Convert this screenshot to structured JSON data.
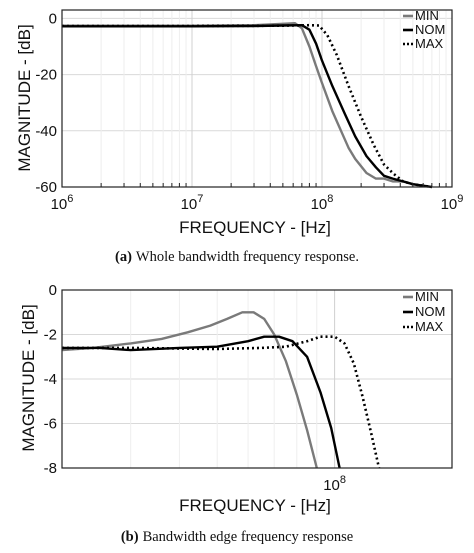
{
  "chart_data": [
    {
      "type": "line",
      "panel": "a",
      "xscale": "log",
      "xlabel": "FREQUENCY - [Hz]",
      "ylabel": "MAGNITUDE - [dB]",
      "xlim": [
        1000000,
        1000000000
      ],
      "ylim": [
        -60,
        3
      ],
      "x_tick_labels": [
        {
          "base": "10",
          "exp": "6",
          "value": 1000000
        },
        {
          "base": "10",
          "exp": "7",
          "value": 10000000
        },
        {
          "base": "10",
          "exp": "8",
          "value": 100000000
        },
        {
          "base": "10",
          "exp": "9",
          "value": 1000000000
        }
      ],
      "y_ticks": [
        0,
        -20,
        -40,
        -60
      ],
      "y_tick_labels": [
        "0",
        "-20",
        "-40",
        "-60"
      ],
      "grid": true,
      "legend": "top-right",
      "series": [
        {
          "name": "MIN",
          "color": "#7a7a7a",
          "dash": "solid",
          "points": [
            [
              1000000,
              -2.6
            ],
            [
              10000000,
              -2.6
            ],
            [
              30000000,
              -2.4
            ],
            [
              50000000,
              -1.9
            ],
            [
              62000000,
              -1.7
            ],
            [
              70000000,
              -3.5
            ],
            [
              80000000,
              -10
            ],
            [
              90000000,
              -17
            ],
            [
              100000000,
              -23
            ],
            [
              120000000,
              -33
            ],
            [
              140000000,
              -40
            ],
            [
              160000000,
              -46
            ],
            [
              180000000,
              -50
            ],
            [
              220000000,
              -55
            ],
            [
              260000000,
              -57
            ],
            [
              300000000,
              -57
            ],
            [
              350000000,
              -58
            ],
            [
              420000000,
              -58
            ],
            [
              500000000,
              -59
            ],
            [
              700000000,
              -60
            ]
          ]
        },
        {
          "name": "NOM",
          "color": "#000000",
          "dash": "solid",
          "points": [
            [
              1000000,
              -2.8
            ],
            [
              10000000,
              -2.8
            ],
            [
              30000000,
              -2.7
            ],
            [
              50000000,
              -2.5
            ],
            [
              70000000,
              -2.4
            ],
            [
              80000000,
              -4
            ],
            [
              90000000,
              -9
            ],
            [
              100000000,
              -15
            ],
            [
              120000000,
              -24
            ],
            [
              150000000,
              -34
            ],
            [
              180000000,
              -42
            ],
            [
              220000000,
              -49
            ],
            [
              260000000,
              -53
            ],
            [
              300000000,
              -56
            ],
            [
              350000000,
              -57
            ],
            [
              420000000,
              -58
            ],
            [
              500000000,
              -59
            ],
            [
              700000000,
              -60
            ]
          ]
        },
        {
          "name": "MAX",
          "color": "#000000",
          "dash": "dotted",
          "points": [
            [
              1000000,
              -2.7
            ],
            [
              10000000,
              -2.7
            ],
            [
              50000000,
              -2.6
            ],
            [
              80000000,
              -2.4
            ],
            [
              95000000,
              -2.5
            ],
            [
              110000000,
              -6
            ],
            [
              130000000,
              -13
            ],
            [
              160000000,
              -24
            ],
            [
              200000000,
              -35
            ],
            [
              250000000,
              -45
            ],
            [
              300000000,
              -52
            ],
            [
              350000000,
              -55
            ],
            [
              420000000,
              -58
            ],
            [
              500000000,
              -59
            ],
            [
              700000000,
              -60
            ]
          ]
        }
      ]
    },
    {
      "type": "line",
      "panel": "b",
      "xscale": "log",
      "xlabel": "FREQUENCY - [Hz]",
      "ylabel": "MAGNITUDE - [dB]",
      "xlim": [
        20000000,
        200000000
      ],
      "ylim": [
        -8,
        0
      ],
      "x_tick_labels": [
        {
          "base": "10",
          "exp": "8",
          "value": 100000000
        }
      ],
      "y_ticks": [
        0,
        -2,
        -4,
        -6,
        -8
      ],
      "y_tick_labels": [
        "0",
        "-2",
        "-4",
        "-6",
        "-8"
      ],
      "grid": true,
      "legend": "top-right",
      "series": [
        {
          "name": "MIN",
          "color": "#7a7a7a",
          "dash": "solid",
          "points": [
            [
              20000000,
              -2.7
            ],
            [
              24000000,
              -2.6
            ],
            [
              30000000,
              -2.4
            ],
            [
              36000000,
              -2.2
            ],
            [
              42000000,
              -1.9
            ],
            [
              48000000,
              -1.6
            ],
            [
              53000000,
              -1.3
            ],
            [
              58000000,
              -1.0
            ],
            [
              62000000,
              -1.0
            ],
            [
              66000000,
              -1.3
            ],
            [
              70000000,
              -2.0
            ],
            [
              75000000,
              -3.2
            ],
            [
              80000000,
              -4.7
            ],
            [
              85000000,
              -6.3
            ],
            [
              90000000,
              -8.0
            ]
          ]
        },
        {
          "name": "NOM",
          "color": "#000000",
          "dash": "solid",
          "points": [
            [
              20000000,
              -2.6
            ],
            [
              25000000,
              -2.6
            ],
            [
              30000000,
              -2.7
            ],
            [
              40000000,
              -2.6
            ],
            [
              50000000,
              -2.55
            ],
            [
              60000000,
              -2.3
            ],
            [
              66000000,
              -2.1
            ],
            [
              72000000,
              -2.1
            ],
            [
              78000000,
              -2.3
            ],
            [
              85000000,
              -3.0
            ],
            [
              92000000,
              -4.6
            ],
            [
              98000000,
              -6.2
            ],
            [
              103000000,
              -8.0
            ]
          ]
        },
        {
          "name": "MAX",
          "color": "#000000",
          "dash": "dotted",
          "points": [
            [
              20000000,
              -2.6
            ],
            [
              30000000,
              -2.6
            ],
            [
              50000000,
              -2.65
            ],
            [
              65000000,
              -2.6
            ],
            [
              75000000,
              -2.55
            ],
            [
              85000000,
              -2.3
            ],
            [
              92000000,
              -2.1
            ],
            [
              100000000,
              -2.1
            ],
            [
              106000000,
              -2.4
            ],
            [
              112000000,
              -3.3
            ],
            [
              118000000,
              -4.8
            ],
            [
              124000000,
              -6.4
            ],
            [
              130000000,
              -8.0
            ]
          ]
        }
      ]
    }
  ],
  "captions": [
    {
      "label": "(a)",
      "text": "Whole bandwidth frequency response."
    },
    {
      "label": "(b)",
      "text": "Bandwidth edge frequency response"
    }
  ]
}
